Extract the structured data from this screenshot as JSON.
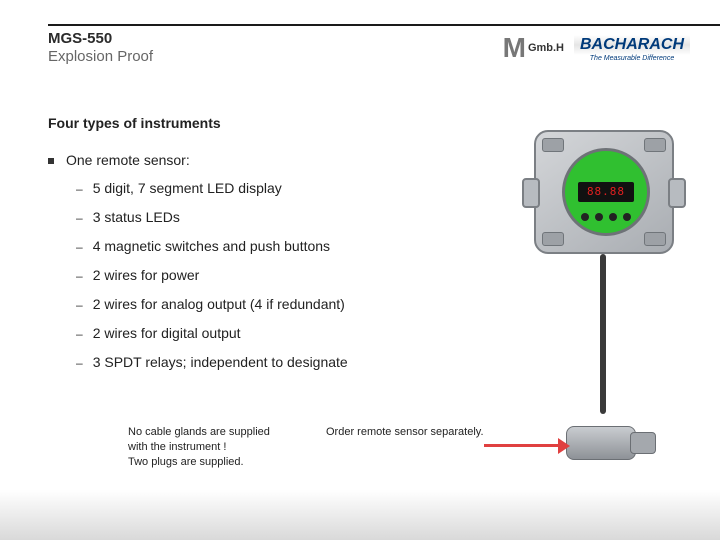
{
  "header": {
    "title": "MGS-550",
    "subtitle": "Explosion Proof"
  },
  "logo": {
    "m_glyph": "M",
    "gmbh": "Gmb.H",
    "brand": "BACHARACH",
    "tagline": "The Measurable Difference"
  },
  "section_title": "Four types of instruments",
  "main_bullet": "One remote sensor:",
  "sub_bullets": [
    "5 digit, 7 segment LED display",
    "3 status LEDs",
    "4 magnetic switches and push buttons",
    "2 wires for power",
    "2 wires for analog output (4 if redundant)",
    "2 wires for digital output",
    "3 SPDT relays; independent to designate"
  ],
  "notes": {
    "left": "No cable glands are supplied with the instrument !\nTwo plugs are supplied.",
    "right": "Order remote sensor separately."
  },
  "device": {
    "readout": "88.88",
    "face_color": "#30c030",
    "enclosure_color": "#b7bbc0",
    "arrow_color": "#e04040"
  },
  "colors": {
    "title": "#2b2b2b",
    "subtitle": "#666666",
    "text": "#222222",
    "brand_blue": "#003a7a",
    "rule": "#1a1a1a"
  }
}
